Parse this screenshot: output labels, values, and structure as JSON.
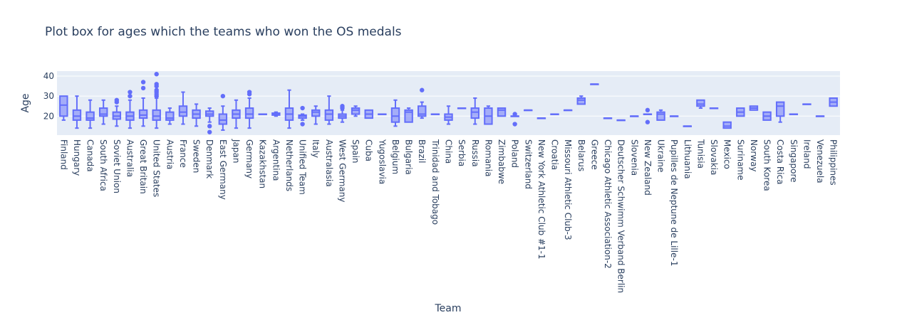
{
  "chart_data": {
    "type": "box",
    "title": "Plot box for ages which the teams who won the OS medals",
    "xlabel": "Team",
    "ylabel": "Age",
    "ylim": [
      10.5,
      42.5
    ],
    "yticks": [
      20,
      30,
      40
    ],
    "grid": true,
    "legend": "none",
    "colors": {
      "box_line": "#636efa",
      "box_fill": "rgba(99,110,250,0.5)",
      "plot_bg": "#e5ecf6",
      "grid": "#ffffff"
    },
    "categories": [
      "Finland",
      "Hungary",
      "Canada",
      "South Africa",
      "Soviet Union",
      "Australia",
      "Great Britain",
      "United States",
      "Austria",
      "France",
      "Sweden",
      "Denmark",
      "East Germany",
      "Japan",
      "Germany",
      "Kazakhstan",
      "Argentina",
      "Netherlands",
      "Unified Team",
      "Italy",
      "Australasia",
      "West Germany",
      "Spain",
      "Cuba",
      "Yugoslavia",
      "Belgium",
      "Bulgaria",
      "Brazil",
      "Trinidad and Tobago",
      "China",
      "Serbia",
      "Russia",
      "Romania",
      "Zimbabwe",
      "Poland",
      "Switzerland",
      "New York Athletic Club #1-1",
      "Croatia",
      "Missouri Athletic Club-3",
      "Belarus",
      "Greece",
      "Chicago Athletic Association-2",
      "Deutscher Schwimm Verband Berlin",
      "Slovenia",
      "New Zealand",
      "Ukraine",
      "Pupilles de Neptune de Lille-1",
      "Lithuania",
      "Tunisia",
      "Slovakia",
      "Mexico",
      "Suriname",
      "Norway",
      "South Korea",
      "Costa Rica",
      "Singapore",
      "Ireland",
      "Venezuela",
      "Philippines"
    ],
    "boxes": [
      {
        "min": 18,
        "q1": 20,
        "median": 25.5,
        "q3": 30,
        "max": 30,
        "outliers": []
      },
      {
        "min": 14,
        "q1": 18,
        "median": 20,
        "q3": 23,
        "max": 30,
        "outliers": []
      },
      {
        "min": 14,
        "q1": 18,
        "median": 19,
        "q3": 22,
        "max": 28,
        "outliers": []
      },
      {
        "min": 16,
        "q1": 20,
        "median": 21,
        "q3": 24,
        "max": 28,
        "outliers": []
      },
      {
        "min": 15,
        "q1": 18.5,
        "median": 20,
        "q3": 22,
        "max": 25,
        "outliers": [
          27,
          28
        ]
      },
      {
        "min": 14,
        "q1": 18,
        "median": 20,
        "q3": 22,
        "max": 28,
        "outliers": [
          30,
          32
        ]
      },
      {
        "min": 15,
        "q1": 19,
        "median": 20.5,
        "q3": 23,
        "max": 29,
        "outliers": [
          34,
          37
        ]
      },
      {
        "min": 14,
        "q1": 18,
        "median": 20,
        "q3": 23,
        "max": 29,
        "outliers": [
          30,
          31,
          32,
          33,
          35,
          36,
          41
        ]
      },
      {
        "min": 16,
        "q1": 18,
        "median": 19,
        "q3": 22,
        "max": 24,
        "outliers": []
      },
      {
        "min": 16,
        "q1": 20,
        "median": 22,
        "q3": 25,
        "max": 32,
        "outliers": []
      },
      {
        "min": 15,
        "q1": 19,
        "median": 21,
        "q3": 23,
        "max": 26,
        "outliers": []
      },
      {
        "min": 17,
        "q1": 20,
        "median": 21,
        "q3": 22.5,
        "max": 24,
        "outliers": [
          12,
          15
        ]
      },
      {
        "min": 13,
        "q1": 16,
        "median": 18,
        "q3": 21,
        "max": 25,
        "outliers": [
          30
        ]
      },
      {
        "min": 14,
        "q1": 19,
        "median": 21,
        "q3": 23,
        "max": 28,
        "outliers": []
      },
      {
        "min": 14,
        "q1": 19,
        "median": 21,
        "q3": 24,
        "max": 29,
        "outliers": [
          31,
          32
        ]
      },
      {
        "min": 21,
        "q1": 21,
        "median": 21,
        "q3": 21,
        "max": 21,
        "outliers": []
      },
      {
        "min": 20,
        "q1": 20.5,
        "median": 21,
        "q3": 21.5,
        "max": 22,
        "outliers": []
      },
      {
        "min": 14,
        "q1": 18,
        "median": 21,
        "q3": 24,
        "max": 33,
        "outliers": []
      },
      {
        "min": 18,
        "q1": 19,
        "median": 20,
        "q3": 20.5,
        "max": 21,
        "outliers": [
          16,
          24
        ]
      },
      {
        "min": 16,
        "q1": 20,
        "median": 22,
        "q3": 23,
        "max": 25,
        "outliers": []
      },
      {
        "min": 16,
        "q1": 18,
        "median": 21,
        "q3": 23,
        "max": 30,
        "outliers": []
      },
      {
        "min": 17,
        "q1": 19,
        "median": 20,
        "q3": 21,
        "max": 23,
        "outliers": [
          24,
          25
        ]
      },
      {
        "min": 20,
        "q1": 21,
        "median": 23,
        "q3": 24,
        "max": 25,
        "outliers": []
      },
      {
        "min": 19,
        "q1": 19,
        "median": 21,
        "q3": 23,
        "max": 23,
        "outliers": []
      },
      {
        "min": 21,
        "q1": 21,
        "median": 21,
        "q3": 21,
        "max": 21,
        "outliers": []
      },
      {
        "min": 15,
        "q1": 17,
        "median": 20,
        "q3": 24,
        "max": 28,
        "outliers": []
      },
      {
        "min": 17,
        "q1": 17,
        "median": 22,
        "q3": 23,
        "max": 24,
        "outliers": []
      },
      {
        "min": 19,
        "q1": 20,
        "median": 21,
        "q3": 25,
        "max": 27,
        "outliers": [
          33
        ]
      },
      {
        "min": 21,
        "q1": 21,
        "median": 21,
        "q3": 21,
        "max": 21,
        "outliers": []
      },
      {
        "min": 16,
        "q1": 18,
        "median": 19.5,
        "q3": 21,
        "max": 25,
        "outliers": []
      },
      {
        "min": 24,
        "q1": 24,
        "median": 24,
        "q3": 24,
        "max": 24,
        "outliers": []
      },
      {
        "min": 16,
        "q1": 19,
        "median": 22,
        "q3": 24,
        "max": 29,
        "outliers": []
      },
      {
        "min": 16,
        "q1": 16,
        "median": 20,
        "q3": 24,
        "max": 25,
        "outliers": []
      },
      {
        "min": 20,
        "q1": 20,
        "median": 23,
        "q3": 24,
        "max": 24,
        "outliers": []
      },
      {
        "min": 20,
        "q1": 20,
        "median": 20,
        "q3": 20,
        "max": 20,
        "outliers": [
          16,
          21
        ]
      },
      {
        "min": 23,
        "q1": 23,
        "median": 23,
        "q3": 23,
        "max": 23,
        "outliers": []
      },
      {
        "min": 19,
        "q1": 19,
        "median": 19,
        "q3": 19,
        "max": 19,
        "outliers": []
      },
      {
        "min": 21,
        "q1": 21,
        "median": 21,
        "q3": 21,
        "max": 21,
        "outliers": []
      },
      {
        "min": 23,
        "q1": 23,
        "median": 23,
        "q3": 23,
        "max": 23,
        "outliers": []
      },
      {
        "min": 26,
        "q1": 26,
        "median": 28,
        "q3": 29,
        "max": 30,
        "outliers": []
      },
      {
        "min": 36,
        "q1": 36,
        "median": 36,
        "q3": 36,
        "max": 36,
        "outliers": []
      },
      {
        "min": 19,
        "q1": 19,
        "median": 19,
        "q3": 19,
        "max": 19,
        "outliers": []
      },
      {
        "min": 18,
        "q1": 18,
        "median": 18,
        "q3": 18,
        "max": 18,
        "outliers": []
      },
      {
        "min": 20,
        "q1": 20,
        "median": 20,
        "q3": 20,
        "max": 20,
        "outliers": []
      },
      {
        "min": 21,
        "q1": 21,
        "median": 21,
        "q3": 21,
        "max": 21,
        "outliers": [
          17,
          23
        ]
      },
      {
        "min": 18,
        "q1": 18,
        "median": 21,
        "q3": 22,
        "max": 23,
        "outliers": []
      },
      {
        "min": 20,
        "q1": 20,
        "median": 20,
        "q3": 20,
        "max": 20,
        "outliers": []
      },
      {
        "min": 15,
        "q1": 15,
        "median": 15,
        "q3": 15,
        "max": 15,
        "outliers": []
      },
      {
        "min": 24,
        "q1": 25,
        "median": 26,
        "q3": 28,
        "max": 28,
        "outliers": []
      },
      {
        "min": 24,
        "q1": 24,
        "median": 24,
        "q3": 24,
        "max": 24,
        "outliers": []
      },
      {
        "min": 14,
        "q1": 14,
        "median": 15,
        "q3": 17,
        "max": 17,
        "outliers": []
      },
      {
        "min": 20,
        "q1": 20,
        "median": 22,
        "q3": 24,
        "max": 24,
        "outliers": []
      },
      {
        "min": 23,
        "q1": 23,
        "median": 24,
        "q3": 25,
        "max": 25,
        "outliers": []
      },
      {
        "min": 18,
        "q1": 18,
        "median": 20,
        "q3": 22,
        "max": 22,
        "outliers": []
      },
      {
        "min": 17,
        "q1": 20,
        "median": 25,
        "q3": 27,
        "max": 27,
        "outliers": []
      },
      {
        "min": 21,
        "q1": 21,
        "median": 21,
        "q3": 21,
        "max": 21,
        "outliers": []
      },
      {
        "min": 26,
        "q1": 26,
        "median": 26,
        "q3": 26,
        "max": 26,
        "outliers": []
      },
      {
        "min": 20,
        "q1": 20,
        "median": 20,
        "q3": 20,
        "max": 20,
        "outliers": []
      },
      {
        "min": 25,
        "q1": 25,
        "median": 27,
        "q3": 29,
        "max": 29,
        "outliers": []
      }
    ]
  }
}
